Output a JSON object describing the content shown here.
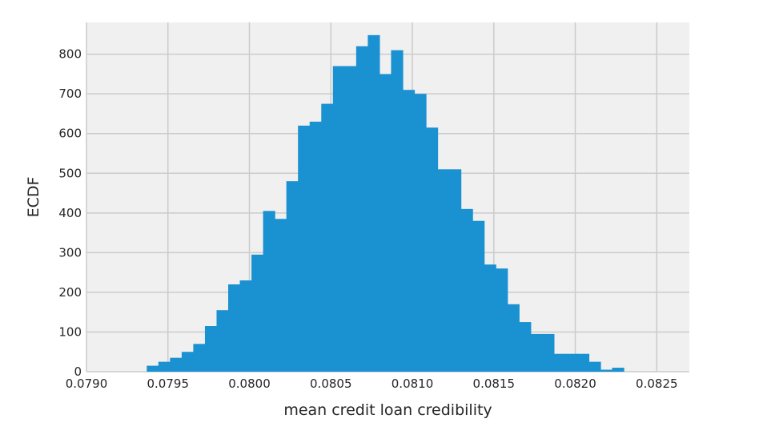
{
  "chart_data": {
    "type": "bar",
    "xlabel": "mean credit loan credibility",
    "ylabel": "ECDF",
    "xlim": [
      0.079,
      0.0827
    ],
    "ylim": [
      0,
      880
    ],
    "grid": true,
    "x_ticks": [
      0.079,
      0.0795,
      0.08,
      0.0805,
      0.081,
      0.0815,
      0.082,
      0.0825
    ],
    "x_tick_labels": [
      "0.0790",
      "0.0795",
      "0.0800",
      "0.0805",
      "0.0810",
      "0.0815",
      "0.0820",
      "0.0825"
    ],
    "y_ticks": [
      0,
      100,
      200,
      300,
      400,
      500,
      600,
      700,
      800
    ],
    "y_tick_labels": [
      "0",
      "100",
      "200",
      "300",
      "400",
      "500",
      "600",
      "700",
      "800"
    ],
    "bin_start": 0.07937,
    "bin_width": 7.14e-05,
    "values": [
      15,
      25,
      35,
      50,
      70,
      115,
      155,
      220,
      230,
      295,
      405,
      385,
      480,
      620,
      630,
      675,
      770,
      770,
      820,
      848,
      750,
      810,
      710,
      700,
      615,
      510,
      510,
      410,
      380,
      270,
      260,
      170,
      125,
      95,
      95,
      45,
      45,
      45,
      25,
      5,
      10
    ],
    "colors": {
      "bar": "#1a91d1",
      "background": "#f0f0f0",
      "grid": "#cbcbcb"
    }
  }
}
